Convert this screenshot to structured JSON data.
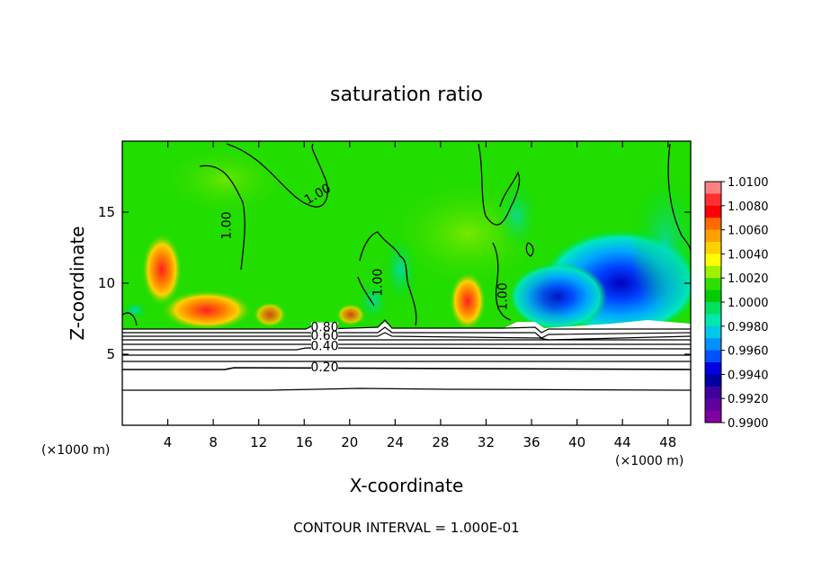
{
  "chart_data": {
    "type": "heatmap",
    "title": "saturation ratio",
    "xlabel": "X-coordinate",
    "ylabel": "Z-coordinate",
    "x_unit": "(×1000 m)",
    "xlim": [
      0,
      50
    ],
    "ylim": [
      0,
      20
    ],
    "x_ticks": [
      4,
      8,
      12,
      16,
      20,
      24,
      28,
      32,
      36,
      40,
      44,
      48
    ],
    "y_ticks": [
      5,
      10,
      15
    ],
    "colorbar": {
      "levels": [
        "1.0100",
        "1.0080",
        "1.0060",
        "1.0040",
        "1.0020",
        "1.0000",
        "0.9980",
        "0.9960",
        "0.9940",
        "0.9920",
        "0.9900"
      ],
      "colors": [
        "#ff8080",
        "#ff3030",
        "#ff0000",
        "#ff6a00",
        "#ffa000",
        "#ffd000",
        "#ffff00",
        "#a0f000",
        "#30dd00",
        "#00cc00",
        "#00e060",
        "#00e8b0",
        "#00c8e8",
        "#0090ff",
        "#0050ff",
        "#0000e0",
        "#0000a0",
        "#4000a0",
        "#6000a0",
        "#8000a0"
      ]
    },
    "contour_labels": [
      {
        "text": "1.00",
        "x": 9.2,
        "z": 13.8
      },
      {
        "text": "1.00",
        "x": 17.2,
        "z": 16.0
      },
      {
        "text": "1.00",
        "x": 22.5,
        "z": 9.8
      },
      {
        "text": "1.00",
        "x": 33.5,
        "z": 8.8
      },
      {
        "text": "0.80",
        "x": 17.8,
        "z": 6.6
      },
      {
        "text": "0.60",
        "x": 17.8,
        "z": 6.0
      },
      {
        "text": "0.40",
        "x": 17.8,
        "z": 5.3
      },
      {
        "text": "0.20",
        "x": 17.8,
        "z": 3.8
      }
    ],
    "contour_interval_text": "CONTOUR INTERVAL = 1.000E-01"
  }
}
